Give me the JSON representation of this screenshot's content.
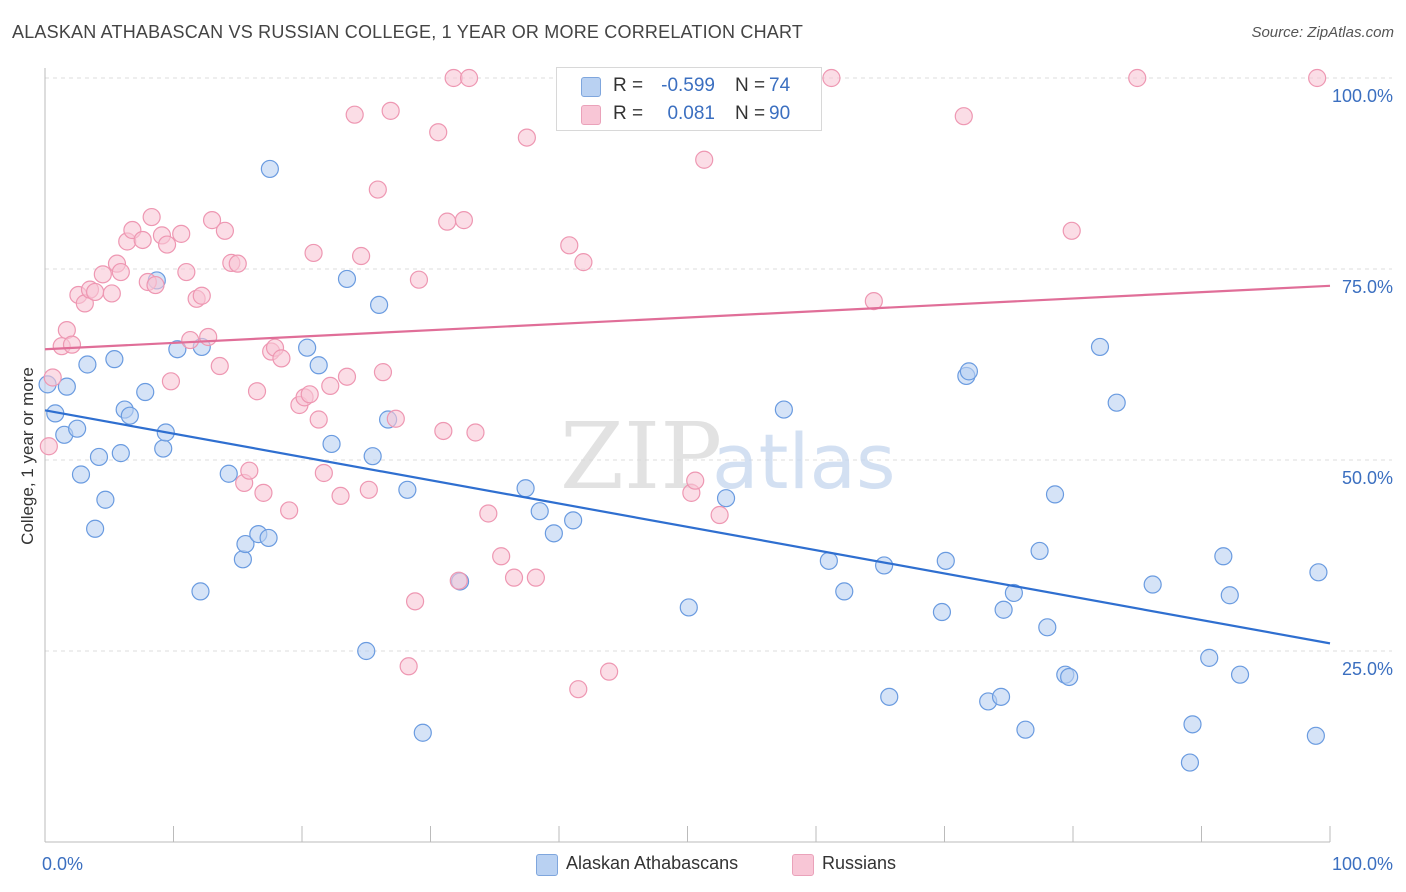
{
  "title": "ALASKAN ATHABASCAN VS RUSSIAN COLLEGE, 1 YEAR OR MORE CORRELATION CHART",
  "source": "Source: ZipAtlas.com",
  "watermark": {
    "zip": "ZIP",
    "atlas": "atlas"
  },
  "stats": [
    {
      "r_label": "R =",
      "r_value": "-0.599",
      "n_label": "N =",
      "n_value": "74",
      "color": "#b9d1f2"
    },
    {
      "r_label": "R =",
      "r_value": "0.081",
      "n_label": "N =",
      "n_value": "90",
      "color": "#f8c6d6"
    }
  ],
  "legend": [
    {
      "label": "Alaskan Athabascans",
      "color": "#b9d1f2"
    },
    {
      "label": "Russians",
      "color": "#f8c6d6"
    }
  ],
  "chart_data": {
    "type": "scatter",
    "ylabel": "College, 1 year or more",
    "xlim": [
      0,
      100
    ],
    "ylim": [
      0,
      100
    ],
    "x_tick_labels": [
      "0.0%",
      "100.0%"
    ],
    "y_ticks": [
      {
        "value": 100,
        "label": "100.0%"
      },
      {
        "value": 75,
        "label": "75.0%"
      },
      {
        "value": 50,
        "label": "50.0%"
      },
      {
        "value": 25,
        "label": "25.0%"
      }
    ],
    "grid": true,
    "legend_position": "bottom",
    "series": [
      {
        "name": "Alaskan Athabascans",
        "color": "#6a9be0",
        "fill": "#b9d1f2",
        "trend": {
          "x": [
            0,
            100
          ],
          "y": [
            56.5,
            26
          ]
        },
        "trend_color": "#2f6fd0",
        "points": [
          [
            0.2,
            59.9
          ],
          [
            0.8,
            56.1
          ],
          [
            1.5,
            53.3
          ],
          [
            1.7,
            59.6
          ],
          [
            2.5,
            54.1
          ],
          [
            2.8,
            48.1
          ],
          [
            3.3,
            62.5
          ],
          [
            3.9,
            41
          ],
          [
            4.2,
            50.4
          ],
          [
            4.7,
            44.8
          ],
          [
            5.4,
            63.2
          ],
          [
            5.9,
            50.9
          ],
          [
            6.2,
            56.6
          ],
          [
            6.6,
            55.8
          ],
          [
            7.8,
            58.9
          ],
          [
            8.7,
            73.5
          ],
          [
            9.2,
            51.5
          ],
          [
            9.4,
            53.6
          ],
          [
            10.3,
            64.5
          ],
          [
            12.1,
            32.8
          ],
          [
            12.2,
            64.8
          ],
          [
            14.3,
            48.2
          ],
          [
            15.4,
            37
          ],
          [
            15.6,
            39
          ],
          [
            16.6,
            40.3
          ],
          [
            17.4,
            39.8
          ],
          [
            17.5,
            88.1
          ],
          [
            20.4,
            64.7
          ],
          [
            21.3,
            62.4
          ],
          [
            22.3,
            52.1
          ],
          [
            23.5,
            73.7
          ],
          [
            25,
            25
          ],
          [
            25.5,
            50.5
          ],
          [
            26,
            70.3
          ],
          [
            26.7,
            55.3
          ],
          [
            28.2,
            46.1
          ],
          [
            29.4,
            14.3
          ],
          [
            32.3,
            34.1
          ],
          [
            37.4,
            46.3
          ],
          [
            38.5,
            43.3
          ],
          [
            39.6,
            40.4
          ],
          [
            41.1,
            42.1
          ],
          [
            50.1,
            30.7
          ],
          [
            53,
            45
          ],
          [
            57.5,
            56.6
          ],
          [
            61,
            36.8
          ],
          [
            62.2,
            32.8
          ],
          [
            65.3,
            36.2
          ],
          [
            65.7,
            19
          ],
          [
            69.8,
            30.1
          ],
          [
            70.1,
            36.8
          ],
          [
            71.7,
            61
          ],
          [
            71.9,
            61.6
          ],
          [
            73.4,
            18.4
          ],
          [
            74.4,
            19
          ],
          [
            74.6,
            30.4
          ],
          [
            75.4,
            32.6
          ],
          [
            76.3,
            14.7
          ],
          [
            77.4,
            38.1
          ],
          [
            78,
            28.1
          ],
          [
            78.6,
            45.5
          ],
          [
            79.4,
            21.9
          ],
          [
            79.7,
            21.6
          ],
          [
            82.1,
            64.8
          ],
          [
            83.4,
            57.5
          ],
          [
            86.2,
            33.7
          ],
          [
            89.1,
            10.4
          ],
          [
            89.3,
            15.4
          ],
          [
            90.6,
            24.1
          ],
          [
            91.7,
            37.4
          ],
          [
            92.2,
            32.3
          ],
          [
            93,
            21.9
          ],
          [
            98.9,
            13.9
          ],
          [
            99.1,
            35.3
          ]
        ]
      },
      {
        "name": "Russians",
        "color": "#ee97b2",
        "fill": "#f8c6d6",
        "trend": {
          "x": [
            0,
            100
          ],
          "y": [
            64.5,
            72.8
          ]
        },
        "trend_color": "#e06e98",
        "points": [
          [
            0.3,
            51.8
          ],
          [
            0.6,
            60.8
          ],
          [
            1.3,
            64.9
          ],
          [
            1.7,
            67
          ],
          [
            2.1,
            65.1
          ],
          [
            2.6,
            71.6
          ],
          [
            3.1,
            70.5
          ],
          [
            3.5,
            72.3
          ],
          [
            3.9,
            72
          ],
          [
            4.5,
            74.3
          ],
          [
            5.2,
            71.8
          ],
          [
            5.6,
            75.7
          ],
          [
            5.9,
            74.6
          ],
          [
            6.4,
            78.6
          ],
          [
            6.8,
            80.1
          ],
          [
            7.6,
            78.8
          ],
          [
            8,
            73.3
          ],
          [
            8.3,
            81.8
          ],
          [
            8.6,
            72.9
          ],
          [
            9.1,
            79.4
          ],
          [
            9.5,
            78.2
          ],
          [
            9.8,
            60.3
          ],
          [
            10.6,
            79.6
          ],
          [
            11,
            74.6
          ],
          [
            11.3,
            65.7
          ],
          [
            11.8,
            71.1
          ],
          [
            12.2,
            71.5
          ],
          [
            12.7,
            66.1
          ],
          [
            13,
            81.4
          ],
          [
            13.6,
            62.3
          ],
          [
            14,
            80
          ],
          [
            14.5,
            75.8
          ],
          [
            15,
            75.7
          ],
          [
            15.5,
            47
          ],
          [
            15.9,
            48.6
          ],
          [
            16.5,
            59
          ],
          [
            17,
            45.7
          ],
          [
            17.6,
            64.2
          ],
          [
            17.9,
            64.7
          ],
          [
            18.4,
            63.3
          ],
          [
            19,
            43.4
          ],
          [
            19.8,
            57.2
          ],
          [
            20.2,
            58.2
          ],
          [
            20.6,
            58.6
          ],
          [
            20.9,
            77.1
          ],
          [
            21.3,
            55.3
          ],
          [
            21.7,
            48.3
          ],
          [
            22.2,
            59.7
          ],
          [
            23,
            45.3
          ],
          [
            23.5,
            60.9
          ],
          [
            24.1,
            95.2
          ],
          [
            24.6,
            76.7
          ],
          [
            25.2,
            46.1
          ],
          [
            25.9,
            85.4
          ],
          [
            26.3,
            61.5
          ],
          [
            26.9,
            95.7
          ],
          [
            27.3,
            55.4
          ],
          [
            28.3,
            23
          ],
          [
            28.8,
            31.5
          ],
          [
            29.1,
            73.6
          ],
          [
            30.6,
            92.9
          ],
          [
            31,
            53.8
          ],
          [
            31.3,
            81.2
          ],
          [
            31.8,
            100
          ],
          [
            32.2,
            34.2
          ],
          [
            32.6,
            81.4
          ],
          [
            33,
            100
          ],
          [
            33.5,
            53.6
          ],
          [
            34.5,
            43
          ],
          [
            35.5,
            37.4
          ],
          [
            36.5,
            34.6
          ],
          [
            37.5,
            92.2
          ],
          [
            38.2,
            34.6
          ],
          [
            40.8,
            78.1
          ],
          [
            41.9,
            75.9
          ],
          [
            41.5,
            20
          ],
          [
            43.9,
            22.3
          ],
          [
            47.4,
            100
          ],
          [
            48.3,
            100
          ],
          [
            50.3,
            45.7
          ],
          [
            50.6,
            47.3
          ],
          [
            51.3,
            89.3
          ],
          [
            52.5,
            42.8
          ],
          [
            59.4,
            100
          ],
          [
            61.2,
            100
          ],
          [
            64.5,
            70.8
          ],
          [
            71.5,
            95
          ],
          [
            79.9,
            80
          ],
          [
            85,
            100
          ],
          [
            99,
            100
          ]
        ]
      }
    ]
  }
}
